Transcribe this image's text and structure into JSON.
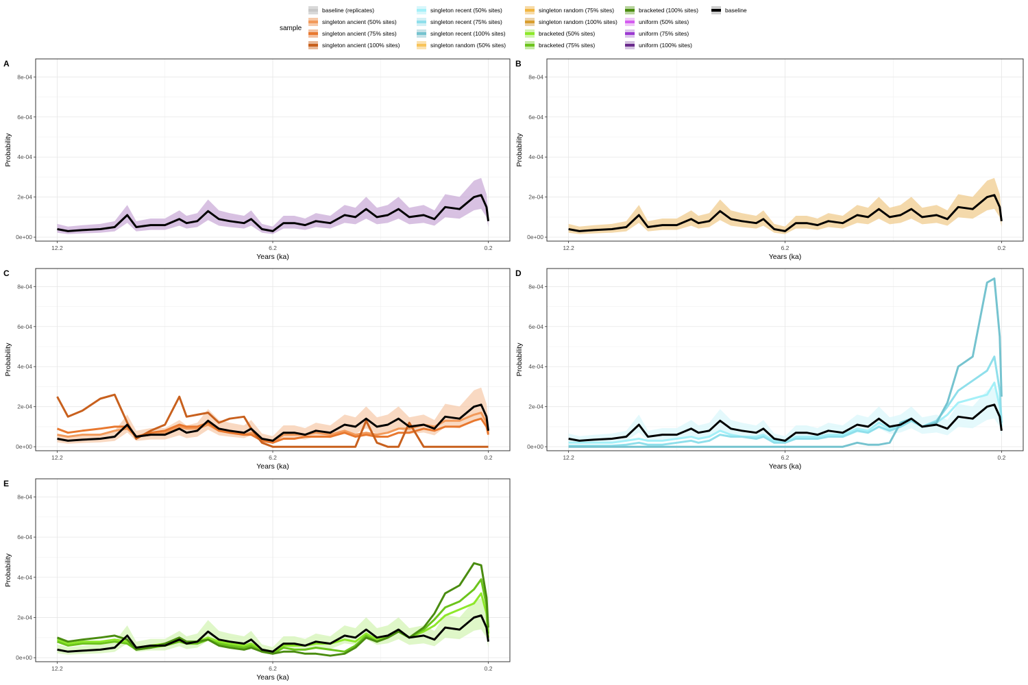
{
  "legend": {
    "title": "sample",
    "items": [
      {
        "label": "baseline (replicates)",
        "color": "#c8c8c8",
        "fill": "#d9d9d9"
      },
      {
        "label": "singleton ancient (50% sites)",
        "color": "#f29a5b",
        "fill": "#f7c9a8"
      },
      {
        "label": "singleton ancient (75% sites)",
        "color": "#e8782f",
        "fill": "#f3c0a0"
      },
      {
        "label": "singleton ancient (100% sites)",
        "color": "#c8601d",
        "fill": "#e8b898"
      },
      {
        "label": "singleton recent (50% sites)",
        "color": "#a4f0f8",
        "fill": "#d8f7fb"
      },
      {
        "label": "singleton recent (75% sites)",
        "color": "#8fdfeb",
        "fill": "#d2f0f5"
      },
      {
        "label": "singleton recent (100% sites)",
        "color": "#75c3cf",
        "fill": "#c6e2e7"
      },
      {
        "label": "singleton random (50% sites)",
        "color": "#f8c45a",
        "fill": "#fbe2b0"
      },
      {
        "label": "singleton random (75% sites)",
        "color": "#f1b641",
        "fill": "#f7dba8"
      },
      {
        "label": "singleton random (100% sites)",
        "color": "#d99e2e",
        "fill": "#ebd2a8"
      },
      {
        "label": "bracketed (50% sites)",
        "color": "#8ee82a",
        "fill": "#d2f3b0"
      },
      {
        "label": "bracketed (75% sites)",
        "color": "#6cc41c",
        "fill": "#c6eaa6"
      },
      {
        "label": "bracketed (100% sites)",
        "color": "#4a8c10",
        "fill": "#b8d49e"
      },
      {
        "label": "uniform (50% sites)",
        "color": "#d45cf0",
        "fill": "#efc6f7"
      },
      {
        "label": "uniform (75% sites)",
        "color": "#9c3ad2",
        "fill": "#dcc4ec"
      },
      {
        "label": "uniform (100% sites)",
        "color": "#6a2a8c",
        "fill": "#d4c2e0"
      },
      {
        "label": "baseline",
        "color": "#000000",
        "fill": "#cfcfcf"
      }
    ]
  },
  "chart_data": [
    {
      "panel": "A",
      "type": "line",
      "xlabel": "Years (ka)",
      "ylabel": "Probability",
      "xlim": [
        12.8,
        -0.4
      ],
      "ylim": [
        -2e-05,
        0.00089
      ],
      "xticks": [
        12.2,
        6.2,
        0.2
      ],
      "xtick_labels": [
        "12.2",
        "6.2",
        "0.2"
      ],
      "yticks": [
        0,
        0.0002,
        0.0004,
        0.0006,
        0.0008
      ],
      "ytick_labels": [
        "0e+00",
        "2e-04",
        "4e-04",
        "6e-04",
        "8e-04"
      ],
      "band_color": "#c7a6d6",
      "series": [],
      "x": [
        12.2,
        11.9,
        11.5,
        11.0,
        10.6,
        10.25,
        10.0,
        9.6,
        9.2,
        8.8,
        8.6,
        8.3,
        8.0,
        7.7,
        7.4,
        7.0,
        6.8,
        6.5,
        6.2,
        5.9,
        5.6,
        5.3,
        5.0,
        4.6,
        4.2,
        3.9,
        3.6,
        3.3,
        3.0,
        2.7,
        2.4,
        2.0,
        1.7,
        1.4,
        1.0,
        0.6,
        0.4,
        0.25,
        0.2
      ],
      "baseline": [
        4e-05,
        3e-05,
        3.5e-05,
        4e-05,
        5e-05,
        0.00011,
        5e-05,
        6e-05,
        6e-05,
        9e-05,
        7e-05,
        8e-05,
        0.00013,
        9e-05,
        8e-05,
        7e-05,
        9e-05,
        4e-05,
        3e-05,
        7e-05,
        7e-05,
        6e-05,
        8e-05,
        7e-05,
        0.00011,
        0.0001,
        0.00014,
        0.0001,
        0.00011,
        0.00014,
        0.0001,
        0.00011,
        9e-05,
        0.00015,
        0.00014,
        0.0002,
        0.00021,
        0.00015,
        8e-05
      ]
    },
    {
      "panel": "B",
      "type": "line",
      "xlabel": "Years (ka)",
      "ylabel": "Probability",
      "xlim": [
        12.8,
        -0.4
      ],
      "ylim": [
        -2e-05,
        0.00089
      ],
      "xticks": [
        12.2,
        6.2,
        0.2
      ],
      "xtick_labels": [
        "12.2",
        "6.2",
        "0.2"
      ],
      "yticks": [
        0,
        0.0002,
        0.0004,
        0.0006,
        0.0008
      ],
      "ytick_labels": [
        "0e+00",
        "2e-04",
        "4e-04",
        "6e-04",
        "8e-04"
      ],
      "band_color": "#f0c987",
      "series": [],
      "x": [
        12.2,
        11.9,
        11.5,
        11.0,
        10.6,
        10.25,
        10.0,
        9.6,
        9.2,
        8.8,
        8.6,
        8.3,
        8.0,
        7.7,
        7.4,
        7.0,
        6.8,
        6.5,
        6.2,
        5.9,
        5.6,
        5.3,
        5.0,
        4.6,
        4.2,
        3.9,
        3.6,
        3.3,
        3.0,
        2.7,
        2.4,
        2.0,
        1.7,
        1.4,
        1.0,
        0.6,
        0.4,
        0.25,
        0.2
      ],
      "baseline": [
        4e-05,
        3e-05,
        3.5e-05,
        4e-05,
        5e-05,
        0.00011,
        5e-05,
        6e-05,
        6e-05,
        9e-05,
        7e-05,
        8e-05,
        0.00013,
        9e-05,
        8e-05,
        7e-05,
        9e-05,
        4e-05,
        3e-05,
        7e-05,
        7e-05,
        6e-05,
        8e-05,
        7e-05,
        0.00011,
        0.0001,
        0.00014,
        0.0001,
        0.00011,
        0.00014,
        0.0001,
        0.00011,
        9e-05,
        0.00015,
        0.00014,
        0.0002,
        0.00021,
        0.00015,
        8e-05
      ]
    },
    {
      "panel": "C",
      "type": "line",
      "xlabel": "Years (ka)",
      "ylabel": "Probability",
      "xlim": [
        12.8,
        -0.4
      ],
      "ylim": [
        -2e-05,
        0.00089
      ],
      "xticks": [
        12.2,
        6.2,
        0.2
      ],
      "xtick_labels": [
        "12.2",
        "6.2",
        "0.2"
      ],
      "yticks": [
        0,
        0.0002,
        0.0004,
        0.0006,
        0.0008
      ],
      "ytick_labels": [
        "0e+00",
        "2e-04",
        "4e-04",
        "6e-04",
        "8e-04"
      ],
      "band_color": "#f7c9a8",
      "x": [
        12.2,
        11.9,
        11.5,
        11.0,
        10.6,
        10.25,
        10.0,
        9.6,
        9.2,
        8.8,
        8.6,
        8.3,
        8.0,
        7.7,
        7.4,
        7.0,
        6.8,
        6.5,
        6.2,
        5.9,
        5.6,
        5.3,
        5.0,
        4.6,
        4.2,
        3.9,
        3.6,
        3.3,
        3.0,
        2.7,
        2.4,
        2.0,
        1.7,
        1.4,
        1.0,
        0.6,
        0.4,
        0.25,
        0.2
      ],
      "baseline": [
        4e-05,
        3e-05,
        3.5e-05,
        4e-05,
        5e-05,
        0.00011,
        5e-05,
        6e-05,
        6e-05,
        9e-05,
        7e-05,
        8e-05,
        0.00013,
        9e-05,
        8e-05,
        7e-05,
        9e-05,
        4e-05,
        3e-05,
        7e-05,
        7e-05,
        6e-05,
        8e-05,
        7e-05,
        0.00011,
        0.0001,
        0.00014,
        0.0001,
        0.00011,
        0.00014,
        0.0001,
        0.00011,
        9e-05,
        0.00015,
        0.00014,
        0.0002,
        0.00021,
        0.00015,
        8e-05
      ],
      "series": [
        {
          "name": "singleton ancient (50% sites)",
          "color": "#f29a5b",
          "values": [
            6e-05,
            5e-05,
            6e-05,
            6e-05,
            8e-05,
            9e-05,
            5e-05,
            6e-05,
            7e-05,
            0.0001,
            9e-05,
            9e-05,
            0.00011,
            8e-05,
            7e-05,
            6e-05,
            7e-05,
            4e-05,
            2e-05,
            6e-05,
            6e-05,
            6e-05,
            7e-05,
            6e-05,
            8e-05,
            6e-05,
            7e-05,
            6e-05,
            7e-05,
            9e-05,
            9e-05,
            0.00011,
            0.0001,
            0.00013,
            0.00013,
            0.00016,
            0.00017,
            0.00012,
            7e-05
          ]
        },
        {
          "name": "singleton ancient (75% sites)",
          "color": "#e8782f",
          "values": [
            9e-05,
            7e-05,
            8e-05,
            9e-05,
            0.0001,
            0.0001,
            5e-05,
            7e-05,
            8e-05,
            0.00011,
            0.0001,
            0.0001,
            0.00012,
            8e-05,
            7e-05,
            6e-05,
            6e-05,
            3e-05,
            2e-05,
            4e-05,
            4e-05,
            5e-05,
            5e-05,
            5e-05,
            7e-05,
            5e-05,
            6e-05,
            5e-05,
            5e-05,
            7e-05,
            7e-05,
            9e-05,
            8e-05,
            0.0001,
            0.0001,
            0.00013,
            0.00014,
            0.0001,
            6e-05
          ]
        },
        {
          "name": "singleton ancient (100% sites)",
          "color": "#c8601d",
          "values": [
            0.00025,
            0.00015,
            0.00018,
            0.00024,
            0.00026,
            0.00012,
            4e-05,
            8e-05,
            0.00011,
            0.00025,
            0.00015,
            0.00016,
            0.00017,
            0.00012,
            0.00014,
            0.00015,
            9e-05,
            2e-05,
            0.0,
            0.0,
            0.0,
            0.0,
            0.0,
            0.0,
            0.0,
            0.0,
            0.00013,
            2e-05,
            0.0,
            0.0,
            0.00012,
            0.0,
            0.0,
            0.0,
            0.0,
            0.0,
            0.0,
            0.0,
            0.0
          ]
        }
      ]
    },
    {
      "panel": "D",
      "type": "line",
      "xlabel": "Years (ka)",
      "ylabel": "Probability",
      "xlim": [
        12.8,
        -0.4
      ],
      "ylim": [
        -2e-05,
        0.00089
      ],
      "xticks": [
        12.2,
        6.2,
        0.2
      ],
      "xtick_labels": [
        "12.2",
        "6.2",
        "0.2"
      ],
      "yticks": [
        0,
        0.0002,
        0.0004,
        0.0006,
        0.0008
      ],
      "ytick_labels": [
        "0e+00",
        "2e-04",
        "4e-04",
        "6e-04",
        "8e-04"
      ],
      "band_color": "#d8f7fb",
      "x": [
        12.2,
        11.9,
        11.5,
        11.0,
        10.6,
        10.25,
        10.0,
        9.6,
        9.2,
        8.8,
        8.6,
        8.3,
        8.0,
        7.7,
        7.4,
        7.0,
        6.8,
        6.5,
        6.2,
        5.9,
        5.6,
        5.3,
        5.0,
        4.6,
        4.2,
        3.9,
        3.6,
        3.3,
        3.0,
        2.7,
        2.4,
        2.0,
        1.7,
        1.4,
        1.0,
        0.6,
        0.4,
        0.25,
        0.2
      ],
      "baseline": [
        4e-05,
        3e-05,
        3.5e-05,
        4e-05,
        5e-05,
        0.00011,
        5e-05,
        6e-05,
        6e-05,
        9e-05,
        7e-05,
        8e-05,
        0.00013,
        9e-05,
        8e-05,
        7e-05,
        9e-05,
        4e-05,
        3e-05,
        7e-05,
        7e-05,
        6e-05,
        8e-05,
        7e-05,
        0.00011,
        0.0001,
        0.00014,
        0.0001,
        0.00011,
        0.00014,
        0.0001,
        0.00011,
        9e-05,
        0.00015,
        0.00014,
        0.0002,
        0.00021,
        0.00015,
        8e-05
      ],
      "series": [
        {
          "name": "singleton recent (50% sites)",
          "color": "#a4f0f8",
          "values": [
            2e-05,
            2e-05,
            2e-05,
            2e-05,
            3e-05,
            4e-05,
            3e-05,
            3e-05,
            4e-05,
            5e-05,
            4e-05,
            5e-05,
            8e-05,
            6e-05,
            5e-05,
            5e-05,
            6e-05,
            3e-05,
            2e-05,
            5e-05,
            5e-05,
            5e-05,
            6e-05,
            6e-05,
            9e-05,
            8e-05,
            0.00012,
            9e-05,
            0.0001,
            0.00013,
            0.0001,
            0.00012,
            0.00016,
            0.00022,
            0.00024,
            0.00026,
            0.00032,
            0.0002,
            0.0001
          ]
        },
        {
          "name": "singleton recent (75% sites)",
          "color": "#8fdfeb",
          "values": [
            5e-06,
            5e-06,
            5e-06,
            5e-06,
            1e-05,
            2e-05,
            1e-05,
            1e-05,
            2e-05,
            3e-05,
            2e-05,
            3e-05,
            6e-05,
            5e-05,
            5e-05,
            4e-05,
            5e-05,
            2e-05,
            2e-05,
            4e-05,
            4e-05,
            4e-05,
            5e-05,
            5e-05,
            8e-05,
            7e-05,
            0.0001,
            8e-05,
            0.0001,
            0.00013,
            0.0001,
            0.00013,
            0.0002,
            0.00028,
            0.00033,
            0.00038,
            0.00045,
            0.00028,
            0.00012
          ]
        },
        {
          "name": "singleton recent (100% sites)",
          "color": "#75c3cf",
          "values": [
            0.0,
            0.0,
            0.0,
            0.0,
            0.0,
            0.0,
            0.0,
            0.0,
            0.0,
            0.0,
            0.0,
            0.0,
            0.0,
            0.0,
            0.0,
            0.0,
            0.0,
            0.0,
            0.0,
            0.0,
            0.0,
            0.0,
            0.0,
            0.0,
            2e-05,
            1e-05,
            1e-05,
            2e-05,
            0.00012,
            0.00014,
            0.0001,
            0.00012,
            0.00022,
            0.0004,
            0.00045,
            0.00082,
            0.00084,
            0.00055,
            0.00025
          ]
        }
      ]
    },
    {
      "panel": "E",
      "type": "line",
      "xlabel": "Years (ka)",
      "ylabel": "Probability",
      "xlim": [
        12.8,
        -0.4
      ],
      "ylim": [
        -2e-05,
        0.00089
      ],
      "xticks": [
        12.2,
        6.2,
        0.2
      ],
      "xtick_labels": [
        "12.2",
        "6.2",
        "0.2"
      ],
      "yticks": [
        0,
        0.0002,
        0.0004,
        0.0006,
        0.0008
      ],
      "ytick_labels": [
        "0e+00",
        "2e-04",
        "4e-04",
        "6e-04",
        "8e-04"
      ],
      "band_color": "#d2f3b0",
      "x": [
        12.2,
        11.9,
        11.5,
        11.0,
        10.6,
        10.25,
        10.0,
        9.6,
        9.2,
        8.8,
        8.6,
        8.3,
        8.0,
        7.7,
        7.4,
        7.0,
        6.8,
        6.5,
        6.2,
        5.9,
        5.6,
        5.3,
        5.0,
        4.6,
        4.2,
        3.9,
        3.6,
        3.3,
        3.0,
        2.7,
        2.4,
        2.0,
        1.7,
        1.4,
        1.0,
        0.6,
        0.4,
        0.25,
        0.2
      ],
      "baseline": [
        4e-05,
        3e-05,
        3.5e-05,
        4e-05,
        5e-05,
        0.00011,
        5e-05,
        6e-05,
        6e-05,
        9e-05,
        7e-05,
        8e-05,
        0.00013,
        9e-05,
        8e-05,
        7e-05,
        9e-05,
        4e-05,
        3e-05,
        7e-05,
        7e-05,
        6e-05,
        8e-05,
        7e-05,
        0.00011,
        0.0001,
        0.00014,
        0.0001,
        0.00011,
        0.00014,
        0.0001,
        0.00011,
        9e-05,
        0.00015,
        0.00014,
        0.0002,
        0.00021,
        0.00015,
        8e-05
      ],
      "series": [
        {
          "name": "bracketed (50% sites)",
          "color": "#8ee82a",
          "values": [
            9e-05,
            7e-05,
            8e-05,
            8e-05,
            9e-05,
            8e-05,
            5e-05,
            6e-05,
            7e-05,
            9e-05,
            8e-05,
            8e-05,
            0.0001,
            8e-05,
            7e-05,
            6e-05,
            7e-05,
            4e-05,
            3e-05,
            6e-05,
            6e-05,
            6e-05,
            7e-05,
            7e-05,
            9e-05,
            8e-05,
            0.00012,
            9e-05,
            0.0001,
            0.00013,
            0.0001,
            0.00013,
            0.00016,
            0.00021,
            0.00024,
            0.00027,
            0.00032,
            0.00022,
            0.0001
          ]
        },
        {
          "name": "bracketed (75% sites)",
          "color": "#6cc41c",
          "values": [
            8e-05,
            6e-05,
            7e-05,
            7e-05,
            8e-05,
            7e-05,
            4e-05,
            5e-05,
            6e-05,
            8e-05,
            7e-05,
            7e-05,
            9e-05,
            7e-05,
            6e-05,
            5e-05,
            6e-05,
            3e-05,
            2e-05,
            5e-05,
            4e-05,
            4e-05,
            5e-05,
            4e-05,
            3e-05,
            6e-05,
            0.00011,
            8e-05,
            0.0001,
            0.00013,
            0.0001,
            0.00014,
            0.00019,
            0.00025,
            0.00028,
            0.00034,
            0.00039,
            0.00026,
            0.00012
          ]
        },
        {
          "name": "bracketed (100% sites)",
          "color": "#4a8c10",
          "values": [
            0.0001,
            8e-05,
            9e-05,
            0.0001,
            0.00011,
            9e-05,
            4e-05,
            5e-05,
            7e-05,
            0.0001,
            8e-05,
            8e-05,
            9e-05,
            6e-05,
            5e-05,
            4e-05,
            5e-05,
            3e-05,
            2e-05,
            3e-05,
            3e-05,
            2e-05,
            2e-05,
            1e-05,
            2e-05,
            5e-05,
            0.0001,
            8e-05,
            0.0001,
            0.00013,
            0.0001,
            0.00015,
            0.00022,
            0.00032,
            0.00036,
            0.00047,
            0.00046,
            0.0003,
            0.00015
          ]
        }
      ]
    }
  ]
}
